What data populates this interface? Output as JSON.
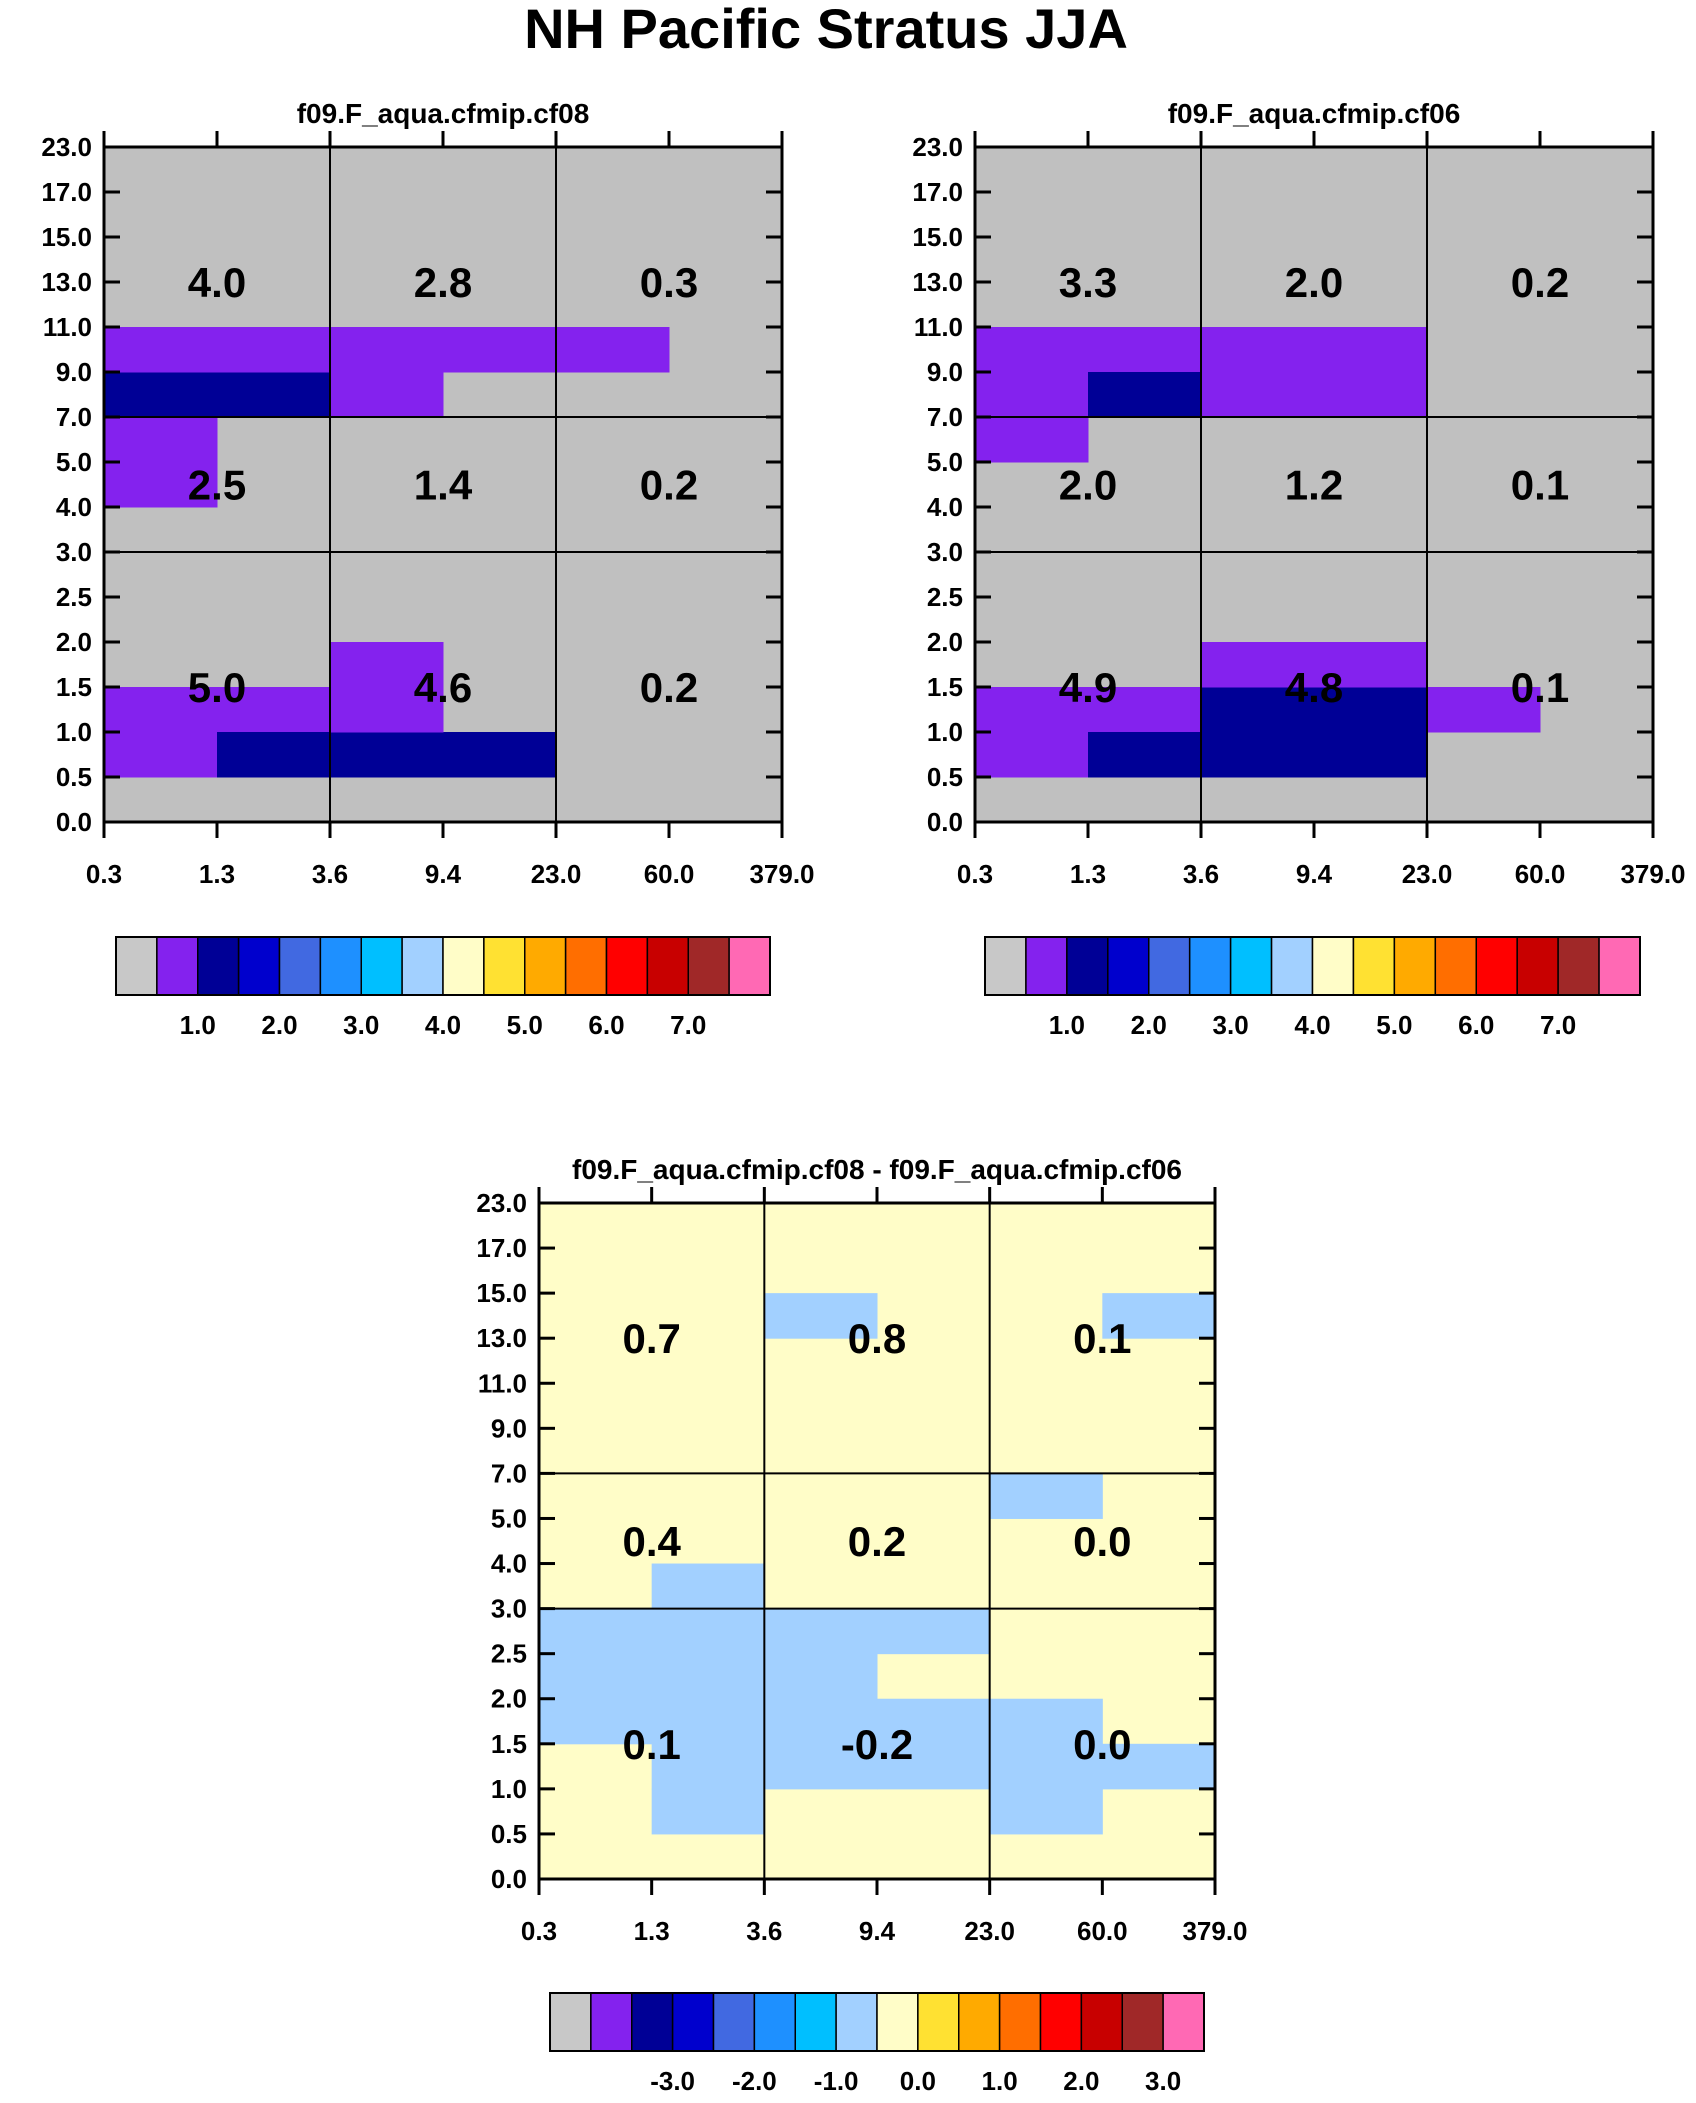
{
  "figure_title": "NH Pacific Stratus JJA",
  "colors": {
    "gray": "#c0c0c0",
    "purple": "#8422ee",
    "navy": "#000096",
    "light_yellow": "#fffdc8",
    "light_blue": "#a2d0ff",
    "line": "#000000"
  },
  "chart_data": [
    {
      "type": "heatmap",
      "title": "f09.F_aqua.cfmip.cf08",
      "x_ticks": [
        "0.3",
        "1.3",
        "3.6",
        "9.4",
        "23.0",
        "60.0",
        "379.0"
      ],
      "y_ticks": [
        "0.0",
        "0.5",
        "1.0",
        "1.5",
        "2.0",
        "2.5",
        "3.0",
        "4.0",
        "5.0",
        "7.0",
        "9.0",
        "11.0",
        "13.0",
        "15.0",
        "17.0",
        "23.0"
      ],
      "background": "gray",
      "cells": [
        {
          "x": 0,
          "y": 9,
          "color": "navy"
        },
        {
          "x": 1,
          "y": 9,
          "color": "navy"
        },
        {
          "x": 0,
          "y": 10,
          "color": "purple"
        },
        {
          "x": 1,
          "y": 10,
          "color": "purple"
        },
        {
          "x": 2,
          "y": 9,
          "color": "purple"
        },
        {
          "x": 2,
          "y": 10,
          "color": "purple"
        },
        {
          "x": 3,
          "y": 10,
          "color": "purple"
        },
        {
          "x": 4,
          "y": 10,
          "color": "purple"
        },
        {
          "x": 0,
          "y": 7,
          "color": "purple"
        },
        {
          "x": 0,
          "y": 8,
          "color": "purple"
        },
        {
          "x": 0,
          "y": 1,
          "color": "purple"
        },
        {
          "x": 0,
          "y": 2,
          "color": "purple"
        },
        {
          "x": 1,
          "y": 2,
          "color": "purple"
        },
        {
          "x": 1,
          "y": 1,
          "color": "navy"
        },
        {
          "x": 2,
          "y": 1,
          "color": "navy"
        },
        {
          "x": 3,
          "y": 1,
          "color": "navy"
        },
        {
          "x": 2,
          "y": 2,
          "color": "purple"
        },
        {
          "x": 2,
          "y": 3,
          "color": "purple"
        }
      ],
      "groups": [
        {
          "x": [
            0,
            2
          ],
          "y": [
            9,
            15
          ],
          "value": "4.0"
        },
        {
          "x": [
            2,
            4
          ],
          "y": [
            9,
            15
          ],
          "value": "2.8"
        },
        {
          "x": [
            4,
            6
          ],
          "y": [
            9,
            15
          ],
          "value": "0.3"
        },
        {
          "x": [
            0,
            2
          ],
          "y": [
            6,
            9
          ],
          "value": "2.5"
        },
        {
          "x": [
            2,
            4
          ],
          "y": [
            6,
            9
          ],
          "value": "1.4"
        },
        {
          "x": [
            4,
            6
          ],
          "y": [
            6,
            9
          ],
          "value": "0.2"
        },
        {
          "x": [
            0,
            2
          ],
          "y": [
            0,
            6
          ],
          "value": "5.0"
        },
        {
          "x": [
            2,
            4
          ],
          "y": [
            0,
            6
          ],
          "value": "4.6"
        },
        {
          "x": [
            4,
            6
          ],
          "y": [
            0,
            6
          ],
          "value": "0.2"
        }
      ],
      "colorbar": {
        "colors": [
          "#c8c8c8",
          "#8422ee",
          "#000096",
          "#0000cd",
          "#4169e1",
          "#1e90ff",
          "#00bfff",
          "#a2d0ff",
          "#fffdc8",
          "#ffe132",
          "#ffaa00",
          "#ff6e00",
          "#ff0000",
          "#c80000",
          "#a02828",
          "#ff69b4"
        ],
        "labels": [
          "1.0",
          "2.0",
          "3.0",
          "4.0",
          "5.0",
          "6.0",
          "7.0"
        ],
        "label_after_box": [
          1,
          3,
          5,
          7,
          9,
          11,
          13
        ]
      }
    },
    {
      "type": "heatmap",
      "title": "f09.F_aqua.cfmip.cf06",
      "x_ticks": [
        "0.3",
        "1.3",
        "3.6",
        "9.4",
        "23.0",
        "60.0",
        "379.0"
      ],
      "y_ticks": [
        "0.0",
        "0.5",
        "1.0",
        "1.5",
        "2.0",
        "2.5",
        "3.0",
        "4.0",
        "5.0",
        "7.0",
        "9.0",
        "11.0",
        "13.0",
        "15.0",
        "17.0",
        "23.0"
      ],
      "background": "gray",
      "cells": [
        {
          "x": 0,
          "y": 9,
          "color": "purple"
        },
        {
          "x": 0,
          "y": 10,
          "color": "purple"
        },
        {
          "x": 1,
          "y": 10,
          "color": "purple"
        },
        {
          "x": 1,
          "y": 9,
          "color": "navy"
        },
        {
          "x": 2,
          "y": 9,
          "color": "purple"
        },
        {
          "x": 2,
          "y": 10,
          "color": "purple"
        },
        {
          "x": 3,
          "y": 10,
          "color": "purple"
        },
        {
          "x": 3,
          "y": 9,
          "color": "purple"
        },
        {
          "x": 0,
          "y": 8,
          "color": "purple"
        },
        {
          "x": 0,
          "y": 1,
          "color": "purple"
        },
        {
          "x": 0,
          "y": 2,
          "color": "purple"
        },
        {
          "x": 1,
          "y": 2,
          "color": "purple"
        },
        {
          "x": 1,
          "y": 1,
          "color": "navy"
        },
        {
          "x": 2,
          "y": 1,
          "color": "navy"
        },
        {
          "x": 2,
          "y": 2,
          "color": "navy"
        },
        {
          "x": 3,
          "y": 1,
          "color": "navy"
        },
        {
          "x": 3,
          "y": 2,
          "color": "navy"
        },
        {
          "x": 2,
          "y": 3,
          "color": "purple"
        },
        {
          "x": 3,
          "y": 3,
          "color": "purple"
        },
        {
          "x": 4,
          "y": 2,
          "color": "purple"
        }
      ],
      "groups": [
        {
          "x": [
            0,
            2
          ],
          "y": [
            9,
            15
          ],
          "value": "3.3"
        },
        {
          "x": [
            2,
            4
          ],
          "y": [
            9,
            15
          ],
          "value": "2.0"
        },
        {
          "x": [
            4,
            6
          ],
          "y": [
            9,
            15
          ],
          "value": "0.2"
        },
        {
          "x": [
            0,
            2
          ],
          "y": [
            6,
            9
          ],
          "value": "2.0"
        },
        {
          "x": [
            2,
            4
          ],
          "y": [
            6,
            9
          ],
          "value": "1.2"
        },
        {
          "x": [
            4,
            6
          ],
          "y": [
            6,
            9
          ],
          "value": "0.1"
        },
        {
          "x": [
            0,
            2
          ],
          "y": [
            0,
            6
          ],
          "value": "4.9"
        },
        {
          "x": [
            2,
            4
          ],
          "y": [
            0,
            6
          ],
          "value": "4.8"
        },
        {
          "x": [
            4,
            6
          ],
          "y": [
            0,
            6
          ],
          "value": "0.1"
        }
      ],
      "colorbar": {
        "colors": [
          "#c8c8c8",
          "#8422ee",
          "#000096",
          "#0000cd",
          "#4169e1",
          "#1e90ff",
          "#00bfff",
          "#a2d0ff",
          "#fffdc8",
          "#ffe132",
          "#ffaa00",
          "#ff6e00",
          "#ff0000",
          "#c80000",
          "#a02828",
          "#ff69b4"
        ],
        "labels": [
          "1.0",
          "2.0",
          "3.0",
          "4.0",
          "5.0",
          "6.0",
          "7.0"
        ],
        "label_after_box": [
          1,
          3,
          5,
          7,
          9,
          11,
          13
        ]
      }
    },
    {
      "type": "heatmap",
      "title": "f09.F_aqua.cfmip.cf08 - f09.F_aqua.cfmip.cf06",
      "x_ticks": [
        "0.3",
        "1.3",
        "3.6",
        "9.4",
        "23.0",
        "60.0",
        "379.0"
      ],
      "y_ticks": [
        "0.0",
        "0.5",
        "1.0",
        "1.5",
        "2.0",
        "2.5",
        "3.0",
        "4.0",
        "5.0",
        "7.0",
        "9.0",
        "11.0",
        "13.0",
        "15.0",
        "17.0",
        "23.0"
      ],
      "background": "light_yellow",
      "cells": [
        {
          "x": 2,
          "y": 12,
          "color": "light_blue"
        },
        {
          "x": 5,
          "y": 12,
          "color": "light_blue"
        },
        {
          "x": 4,
          "y": 8,
          "color": "light_blue"
        },
        {
          "x": 1,
          "y": 6,
          "color": "light_blue"
        },
        {
          "x": 0,
          "y": 3,
          "color": "light_blue"
        },
        {
          "x": 0,
          "y": 4,
          "color": "light_blue"
        },
        {
          "x": 0,
          "y": 5,
          "color": "light_blue"
        },
        {
          "x": 1,
          "y": 1,
          "color": "light_blue"
        },
        {
          "x": 1,
          "y": 2,
          "color": "light_blue"
        },
        {
          "x": 1,
          "y": 3,
          "color": "light_blue"
        },
        {
          "x": 1,
          "y": 4,
          "color": "light_blue"
        },
        {
          "x": 1,
          "y": 5,
          "color": "light_blue"
        },
        {
          "x": 2,
          "y": 2,
          "color": "light_blue"
        },
        {
          "x": 2,
          "y": 3,
          "color": "light_blue"
        },
        {
          "x": 2,
          "y": 4,
          "color": "light_blue"
        },
        {
          "x": 2,
          "y": 5,
          "color": "light_blue"
        },
        {
          "x": 3,
          "y": 2,
          "color": "light_blue"
        },
        {
          "x": 3,
          "y": 3,
          "color": "light_blue"
        },
        {
          "x": 3,
          "y": 5,
          "color": "light_blue"
        },
        {
          "x": 4,
          "y": 1,
          "color": "light_blue"
        },
        {
          "x": 4,
          "y": 2,
          "color": "light_blue"
        },
        {
          "x": 4,
          "y": 3,
          "color": "light_blue"
        },
        {
          "x": 5,
          "y": 2,
          "color": "light_blue"
        }
      ],
      "groups": [
        {
          "x": [
            0,
            2
          ],
          "y": [
            9,
            15
          ],
          "value": "0.7"
        },
        {
          "x": [
            2,
            4
          ],
          "y": [
            9,
            15
          ],
          "value": "0.8"
        },
        {
          "x": [
            4,
            6
          ],
          "y": [
            9,
            15
          ],
          "value": "0.1"
        },
        {
          "x": [
            0,
            2
          ],
          "y": [
            6,
            9
          ],
          "value": "0.4"
        },
        {
          "x": [
            2,
            4
          ],
          "y": [
            6,
            9
          ],
          "value": "0.2"
        },
        {
          "x": [
            4,
            6
          ],
          "y": [
            6,
            9
          ],
          "value": "0.0"
        },
        {
          "x": [
            0,
            2
          ],
          "y": [
            0,
            6
          ],
          "value": "0.1"
        },
        {
          "x": [
            2,
            4
          ],
          "y": [
            0,
            6
          ],
          "value": "-0.2"
        },
        {
          "x": [
            4,
            6
          ],
          "y": [
            0,
            6
          ],
          "value": "0.0"
        }
      ],
      "colorbar": {
        "colors": [
          "#c8c8c8",
          "#8422ee",
          "#000096",
          "#0000cd",
          "#4169e1",
          "#1e90ff",
          "#00bfff",
          "#a2d0ff",
          "#fffdc8",
          "#ffe132",
          "#ffaa00",
          "#ff6e00",
          "#ff0000",
          "#c80000",
          "#a02828",
          "#ff69b4"
        ],
        "labels": [
          "-3.0",
          "-2.0",
          "-1.0",
          "0.0",
          "1.0",
          "2.0",
          "3.0"
        ],
        "label_after_box": [
          2,
          4,
          6,
          8,
          10,
          12,
          14
        ]
      }
    }
  ]
}
